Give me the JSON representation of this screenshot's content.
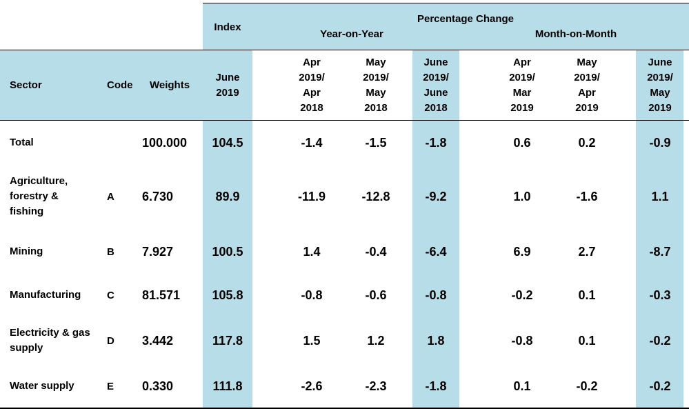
{
  "header": {
    "index": "Index",
    "pct_change": "Percentage Change",
    "yoy": "Year-on-Year",
    "mom": "Month-on-Month",
    "sector": "Sector",
    "code": "Code",
    "weights": "Weights",
    "index_period": "June\n2019",
    "yoy_cols": [
      "Apr\n2019/\nApr\n2018",
      "May\n2019/\nMay\n2018",
      "June\n2019/\nJune\n2018"
    ],
    "mom_cols": [
      "Apr\n2019/\nMar\n2019",
      "May\n2019/\nApr\n2019",
      "June\n2019/\nMay\n2019"
    ]
  },
  "rows": [
    {
      "sector": "Total",
      "code": "",
      "weight": "100.000",
      "index": "104.5",
      "yoy": [
        "-1.4",
        "-1.5",
        "-1.8"
      ],
      "mom": [
        "0.6",
        "0.2",
        "-0.9"
      ]
    },
    {
      "sector": "Agriculture,\nforestry &\nfishing",
      "code": "A",
      "weight": "6.730",
      "index": "89.9",
      "yoy": [
        "-11.9",
        "-12.8",
        "-9.2"
      ],
      "mom": [
        "1.0",
        "-1.6",
        "1.1"
      ]
    },
    {
      "sector": "Mining",
      "code": "B",
      "weight": "7.927",
      "index": "100.5",
      "yoy": [
        "1.4",
        "-0.4",
        "-6.4"
      ],
      "mom": [
        "6.9",
        "2.7",
        "-8.7"
      ]
    },
    {
      "sector": "Manufacturing",
      "code": "C",
      "weight": "81.571",
      "index": "105.8",
      "yoy": [
        "-0.8",
        "-0.6",
        "-0.8"
      ],
      "mom": [
        "-0.2",
        "0.1",
        "-0.3"
      ]
    },
    {
      "sector": "Electricity & gas\nsupply",
      "code": "D",
      "weight": "3.442",
      "index": "117.8",
      "yoy": [
        "1.5",
        "1.2",
        "1.8"
      ],
      "mom": [
        "-0.8",
        "0.1",
        "-0.2"
      ]
    },
    {
      "sector": "Water supply",
      "code": "E",
      "weight": "0.330",
      "index": "111.8",
      "yoy": [
        "-2.6",
        "-2.3",
        "-1.8"
      ],
      "mom": [
        "0.1",
        "-0.2",
        "-0.2"
      ]
    }
  ],
  "colors": {
    "highlight": "#b7dde8",
    "rule": "#000000"
  }
}
